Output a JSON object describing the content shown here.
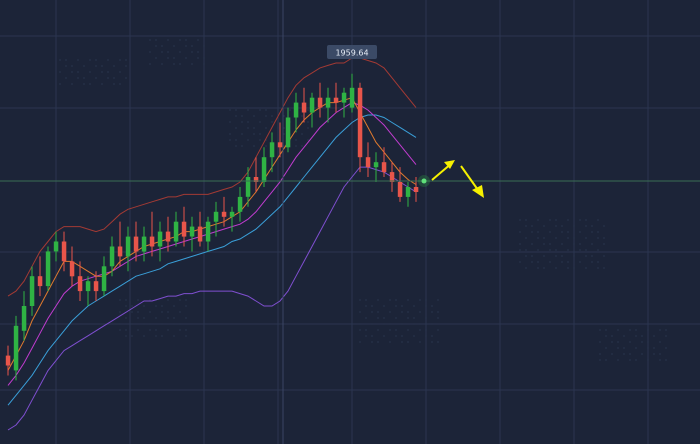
{
  "chart_data": {
    "type": "candlestick",
    "title": "",
    "xlabel": "",
    "ylabel": "",
    "grid": true,
    "annotations": [
      {
        "type": "price-label",
        "text": "1959.64",
        "candle_index": 43
      }
    ],
    "colors": {
      "background": "#1c2438",
      "grid": "#2b3550",
      "bull": "#2fb344",
      "bear": "#e8554a",
      "bollinger": "#a33a34",
      "bollinger_lower": "#7f4fd0",
      "ma_fast": "#e07a2e",
      "ma_mid": "#c03ccf",
      "ma_slow": "#3a9fd8",
      "arrow": "#f6f000",
      "crosshair": "#3a6e54",
      "tag_bg": "#3b4a66",
      "tag_text": "#e6ecf6"
    },
    "series": {
      "candles": [
        [
          1846,
          1850,
          1838,
          1842
        ],
        [
          1840,
          1862,
          1836,
          1858
        ],
        [
          1856,
          1872,
          1852,
          1866
        ],
        [
          1866,
          1882,
          1862,
          1878
        ],
        [
          1878,
          1886,
          1870,
          1874
        ],
        [
          1874,
          1890,
          1872,
          1888
        ],
        [
          1888,
          1896,
          1884,
          1892
        ],
        [
          1892,
          1896,
          1880,
          1884
        ],
        [
          1884,
          1890,
          1874,
          1878
        ],
        [
          1878,
          1884,
          1868,
          1872
        ],
        [
          1872,
          1878,
          1866,
          1876
        ],
        [
          1876,
          1880,
          1868,
          1872
        ],
        [
          1872,
          1886,
          1870,
          1882
        ],
        [
          1882,
          1894,
          1878,
          1890
        ],
        [
          1890,
          1900,
          1882,
          1886
        ],
        [
          1886,
          1898,
          1880,
          1894
        ],
        [
          1894,
          1900,
          1884,
          1888
        ],
        [
          1888,
          1898,
          1884,
          1894
        ],
        [
          1894,
          1904,
          1886,
          1890
        ],
        [
          1890,
          1900,
          1884,
          1896
        ],
        [
          1896,
          1902,
          1888,
          1892
        ],
        [
          1892,
          1904,
          1890,
          1900
        ],
        [
          1900,
          1906,
          1890,
          1894
        ],
        [
          1894,
          1902,
          1888,
          1898
        ],
        [
          1898,
          1904,
          1890,
          1892
        ],
        [
          1892,
          1902,
          1888,
          1900
        ],
        [
          1900,
          1908,
          1894,
          1904
        ],
        [
          1904,
          1910,
          1898,
          1902
        ],
        [
          1902,
          1906,
          1896,
          1904
        ],
        [
          1904,
          1914,
          1900,
          1910
        ],
        [
          1910,
          1922,
          1906,
          1918
        ],
        [
          1918,
          1926,
          1912,
          1916
        ],
        [
          1916,
          1930,
          1914,
          1926
        ],
        [
          1926,
          1936,
          1920,
          1932
        ],
        [
          1932,
          1940,
          1926,
          1930
        ],
        [
          1930,
          1946,
          1928,
          1942
        ],
        [
          1942,
          1952,
          1936,
          1948
        ],
        [
          1948,
          1954,
          1940,
          1944
        ],
        [
          1944,
          1952,
          1938,
          1950
        ],
        [
          1950,
          1956,
          1942,
          1946
        ],
        [
          1946,
          1954,
          1940,
          1950
        ],
        [
          1950,
          1956,
          1944,
          1948
        ],
        [
          1948,
          1954,
          1942,
          1952
        ],
        [
          1946,
          1959.64,
          1944,
          1954
        ],
        [
          1954,
          1956,
          1920,
          1926
        ],
        [
          1926,
          1932,
          1918,
          1922
        ],
        [
          1922,
          1928,
          1916,
          1924
        ],
        [
          1924,
          1930,
          1918,
          1920
        ],
        [
          1920,
          1924,
          1912,
          1916
        ],
        [
          1916,
          1922,
          1908,
          1910
        ],
        [
          1910,
          1916,
          1906,
          1914
        ],
        [
          1914,
          1918,
          1908,
          1912
        ]
      ],
      "bollinger_upper": [
        1870,
        1872,
        1876,
        1882,
        1888,
        1892,
        1896,
        1898,
        1898,
        1898,
        1897,
        1896,
        1897,
        1900,
        1903,
        1905,
        1906,
        1907,
        1908,
        1909,
        1910,
        1910,
        1911,
        1911,
        1911,
        1911,
        1912,
        1913,
        1914,
        1916,
        1920,
        1926,
        1932,
        1938,
        1944,
        1950,
        1955,
        1958,
        1960,
        1962,
        1963,
        1964,
        1964,
        1966,
        1966,
        1965,
        1964,
        1962,
        1958,
        1954,
        1950,
        1946
      ],
      "bollinger_lower": [
        1816,
        1818,
        1822,
        1828,
        1834,
        1840,
        1844,
        1848,
        1850,
        1852,
        1854,
        1856,
        1858,
        1860,
        1862,
        1864,
        1866,
        1868,
        1868,
        1869,
        1870,
        1870,
        1871,
        1871,
        1872,
        1872,
        1872,
        1872,
        1872,
        1871,
        1870,
        1868,
        1866,
        1866,
        1868,
        1872,
        1878,
        1884,
        1890,
        1896,
        1902,
        1908,
        1914,
        1918,
        1922,
        1922,
        1921,
        1920,
        1918,
        1916,
        1914,
        1912
      ],
      "ma_fast": [
        1840,
        1846,
        1852,
        1860,
        1866,
        1872,
        1878,
        1884,
        1884,
        1882,
        1880,
        1878,
        1878,
        1880,
        1884,
        1886,
        1888,
        1890,
        1891,
        1892,
        1893,
        1894,
        1896,
        1896,
        1897,
        1898,
        1899,
        1900,
        1902,
        1904,
        1908,
        1912,
        1917,
        1922,
        1927,
        1932,
        1937,
        1941,
        1944,
        1946,
        1948,
        1948,
        1949,
        1950,
        1944,
        1938,
        1932,
        1928,
        1924,
        1920,
        1917,
        1915
      ],
      "ma_mid": [
        1834,
        1838,
        1843,
        1849,
        1855,
        1861,
        1866,
        1871,
        1874,
        1876,
        1877,
        1878,
        1879,
        1880,
        1882,
        1884,
        1886,
        1887,
        1888,
        1889,
        1890,
        1891,
        1892,
        1893,
        1894,
        1895,
        1896,
        1897,
        1898,
        1899,
        1901,
        1904,
        1908,
        1912,
        1916,
        1921,
        1926,
        1930,
        1934,
        1938,
        1941,
        1944,
        1946,
        1948,
        1947,
        1945,
        1942,
        1939,
        1935,
        1931,
        1927,
        1923
      ],
      "ma_slow": [
        1826,
        1830,
        1834,
        1838,
        1843,
        1848,
        1852,
        1856,
        1860,
        1863,
        1866,
        1868,
        1870,
        1872,
        1874,
        1876,
        1878,
        1879,
        1880,
        1881,
        1883,
        1884,
        1885,
        1886,
        1887,
        1888,
        1889,
        1890,
        1892,
        1893,
        1895,
        1897,
        1900,
        1903,
        1906,
        1910,
        1914,
        1918,
        1922,
        1926,
        1930,
        1934,
        1937,
        1940,
        1942,
        1943,
        1943,
        1942,
        1940,
        1938,
        1936,
        1934
      ]
    },
    "forecast": {
      "direction": "up-then-down"
    }
  }
}
